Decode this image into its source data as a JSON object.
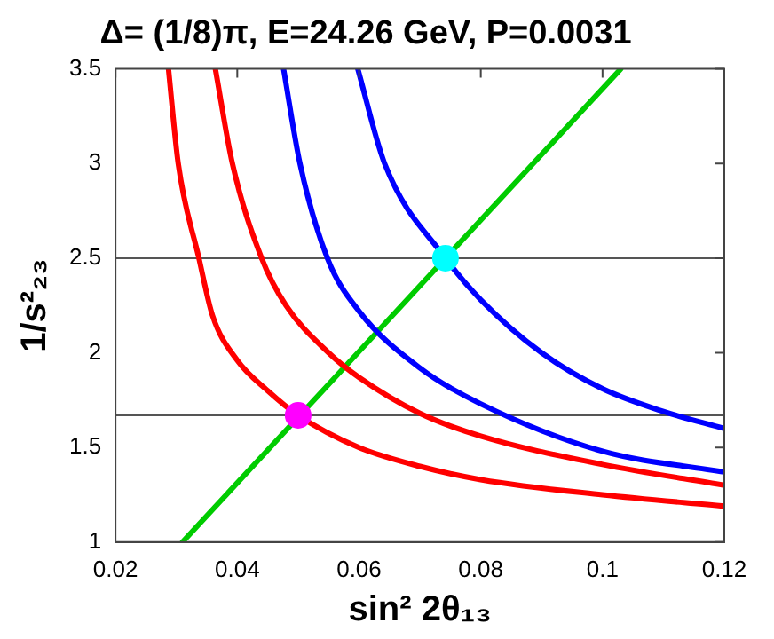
{
  "chart_data": {
    "type": "line",
    "title": "Δ= (1/8)π, E=24.26 GeV, P=0.0031",
    "xlabel": "sin² 2θ₁₃",
    "ylabel": "1/s²₂₃",
    "xlim": [
      0.02,
      0.12
    ],
    "xticks": [
      0.02,
      0.04,
      0.06,
      0.08,
      0.1,
      0.12
    ],
    "ylim": [
      1,
      3.5
    ],
    "yticks": [
      1,
      1.5,
      2,
      2.5,
      3,
      3.5
    ],
    "grid": false,
    "legend": false,
    "series": [
      {
        "color": "#ff0000",
        "x": [
          0.0287,
          0.0303,
          0.0337,
          0.0359,
          0.04,
          0.045,
          0.05,
          0.06,
          0.07,
          0.08,
          0.1,
          0.12
        ],
        "values": [
          3.5,
          3.0,
          2.5,
          2.2,
          1.96,
          1.8,
          1.67,
          1.5,
          1.4,
          1.33,
          1.25,
          1.19
        ]
      },
      {
        "color": "#ff0000",
        "x": [
          0.0364,
          0.0392,
          0.044,
          0.048,
          0.055,
          0.06,
          0.07,
          0.08,
          0.1,
          0.12
        ],
        "values": [
          3.5,
          3.0,
          2.5,
          2.25,
          2.0,
          1.87,
          1.68,
          1.56,
          1.41,
          1.3
        ]
      },
      {
        "color": "#0000ff",
        "x": [
          0.0476,
          0.0503,
          0.0548,
          0.06,
          0.07,
          0.08,
          0.1,
          0.12
        ],
        "values": [
          3.5,
          3.0,
          2.5,
          2.22,
          1.92,
          1.73,
          1.48,
          1.37
        ]
      },
      {
        "color": "#0000ff",
        "x": [
          0.0598,
          0.0642,
          0.0742,
          0.08,
          0.09,
          0.1,
          0.11,
          0.12
        ],
        "values": [
          3.5,
          3.0,
          2.5,
          2.28,
          2.0,
          1.81,
          1.69,
          1.6
        ]
      },
      {
        "color": "#00cc00",
        "x": [
          0.031,
          0.103
        ],
        "values": [
          1,
          3.5
        ]
      },
      {
        "type": "scatter",
        "marker": "circle",
        "color": "#ff00ff",
        "x": [
          0.05
        ],
        "values": [
          1.67
        ]
      },
      {
        "type": "scatter",
        "marker": "circle",
        "color": "#00ffff",
        "x": [
          0.0742
        ],
        "values": [
          2.5
        ]
      }
    ],
    "ref_lines": [
      {
        "axis": "y",
        "value": 2.5,
        "color": "#555555"
      },
      {
        "axis": "y",
        "value": 1.67,
        "color": "#555555"
      }
    ]
  }
}
